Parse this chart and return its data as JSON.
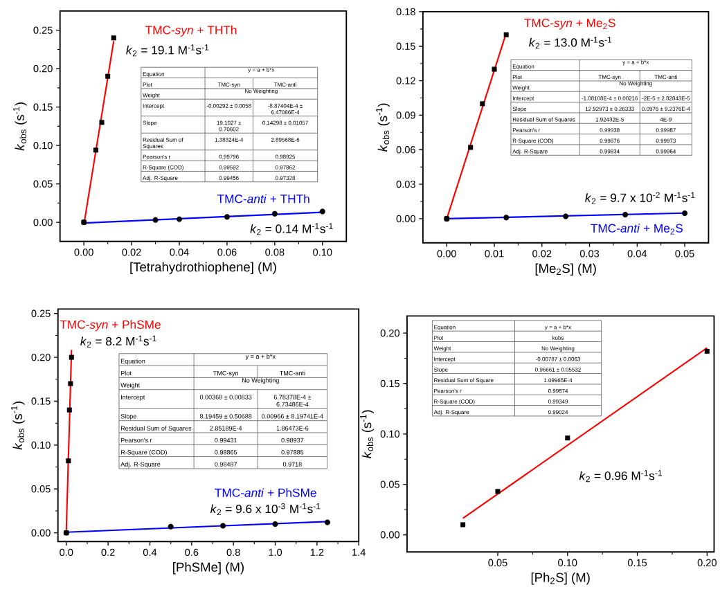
{
  "chart_data": [
    {
      "type": "scatter",
      "xlabel": "[Tetrahydrothiophene] (M)",
      "ylabel": "*k*$_{obs}$ (s$^{-1}$)",
      "xlim": [
        -0.01,
        0.11
      ],
      "xticks": [
        {
          "value": 0,
          "label": "0.00"
        },
        0.02,
        0.04,
        0.06,
        0.08,
        {
          "value": 0.1,
          "label": "0.10"
        }
      ],
      "ylim": [
        -0.025,
        0.275
      ],
      "yticks": [
        {
          "value": 0,
          "label": "0.00"
        },
        0.05,
        {
          "value": 0.1,
          "label": "0.10"
        },
        0.15,
        {
          "value": 0.2,
          "label": "0.20"
        },
        0.25
      ],
      "series": [
        {
          "color": "#000000",
          "marker": "square",
          "x": [
            0,
            0.005,
            0.0075,
            0.01,
            0.0125
          ],
          "values": [
            0,
            0.094,
            0.13,
            0.19,
            0.24
          ]
        },
        {
          "type": "line",
          "name": "TMC-*syn* + THTh",
          "color": "#ff0000",
          "x": [
            0,
            0.0125
          ],
          "values": [
            -0.003,
            0.236
          ]
        },
        {
          "color": "#000000",
          "marker": "circle",
          "x": [
            0,
            0.03,
            0.04,
            0.06,
            0.08,
            0.1
          ],
          "values": [
            0,
            0.003,
            0.004,
            0.007,
            0.011,
            0.014
          ]
        },
        {
          "type": "line",
          "name": "TMC-*anti* + THTh",
          "color": "#0000ff",
          "x": [
            0,
            0.1
          ],
          "values": [
            -0.001,
            0.013
          ]
        }
      ],
      "annotations": [
        "*k*$_{2}$ = 19.1 M$^{-1}$s$^{-1}$",
        "*k*$_{2}$ = 0.14 M$^{-1}$s$^{-1}$",
        "Equation",
        "y = a + b*x",
        "Plot",
        "TMC-syn",
        "TMC-anti",
        "Weight",
        "No Weighting",
        "Intercept",
        "-0.00292 ± 0.0058",
        "-8.87404E-4 ± 6.47086E-4",
        "Slope",
        "19.1027 ± 0.70602",
        "0.14298 ± 0.01057",
        "Residual Sum of Squares",
        "1.38324E-4",
        "2.89568E-6",
        "Pearson's r",
        "0.99796",
        "0.98925",
        "R-Square (COD)",
        "0.99592",
        "0.97862",
        "Adj. R-Square",
        "0.99456",
        "0.97328"
      ]
    },
    {
      "type": "scatter",
      "xlabel": "[Me$_{2}$S] (M)",
      "ylabel": "*k*$_{obs}$ (s$^{-1}$)",
      "xlim": [
        -0.005,
        0.055
      ],
      "xticks": [
        {
          "value": 0,
          "label": "0.00"
        },
        0.01,
        0.02,
        0.03,
        0.04,
        0.05
      ],
      "ylim": [
        -0.021,
        0.18
      ],
      "yticks": [
        {
          "value": 0,
          "label": "0.00"
        },
        0.03,
        0.06,
        0.09,
        0.12,
        0.15,
        0.18
      ],
      "series": [
        {
          "color": "#000000",
          "marker": "square",
          "x": [
            0,
            0.005,
            0.0075,
            0.01,
            0.0125
          ],
          "values": [
            0,
            0.062,
            0.1,
            0.13,
            0.16
          ]
        },
        {
          "type": "line",
          "name": "TMC-*syn* + Me$_{2}$S",
          "color": "#ff0000",
          "x": [
            0,
            0.0125
          ],
          "values": [
            -0.0001,
            0.1615
          ]
        },
        {
          "color": "#000000",
          "marker": "circle",
          "x": [
            0,
            0.0125,
            0.025,
            0.0375,
            0.05
          ],
          "values": [
            0,
            0.001,
            0.002,
            0.0035,
            0.0047
          ]
        },
        {
          "type": "line",
          "name": "TMC-*anti* + Me$_{2}$S",
          "color": "#0000ff",
          "x": [
            0,
            0.05
          ],
          "values": [
            0,
            0.0049
          ]
        }
      ],
      "annotations": [
        "*k*$_{2}$ = 13.0 M$^{-1}$s$^{-1}$",
        "*k*$_{2}$ = 9.7 x 10$^{-2}$ M$^{-1}$s$^{-1}$",
        "Equation",
        "y = a + b*x",
        "Plot",
        "TMC-syn",
        "TMC-anti",
        "Weight",
        "No Weighting",
        "Intercept",
        "-1.08108E-4 ± 0.00216",
        "-2E-5 ± 2.82843E-5",
        "Slope",
        "12.92973 ± 0.26333",
        "0.0976 ± 9.2376E-4",
        "Residual Sum of Squares",
        "1.92432E-5",
        "4E-9",
        "Pearson's r",
        "0.99938",
        "0.99987",
        "R-Square (COD)",
        "0.99876",
        "0.99973",
        "Adj. R-Square",
        "0.99834",
        "0.99964"
      ]
    },
    {
      "type": "scatter",
      "xlabel": "[PhSMe] (M)",
      "ylabel": "*k*$_{obs}$ (s$^{-1}$)",
      "xlim": [
        -0.04,
        1.4
      ],
      "xticks": [
        {
          "value": 0,
          "label": "0.0"
        },
        0.2,
        0.4,
        0.6,
        0.8,
        {
          "value": 1,
          "label": "1.0"
        },
        1.2,
        1.4
      ],
      "ylim": [
        -0.01,
        0.255
      ],
      "yticks": [
        {
          "value": 0,
          "label": "0.00"
        },
        0.05,
        {
          "value": 0.1,
          "label": "0.10"
        },
        0.15,
        {
          "value": 0.2,
          "label": "0.20"
        },
        0.25
      ],
      "series": [
        {
          "color": "#000000",
          "marker": "square",
          "x": [
            0,
            0.01,
            0.015,
            0.02,
            0.025
          ],
          "values": [
            0,
            0.082,
            0.14,
            0.17,
            0.2
          ]
        },
        {
          "type": "line",
          "name": "TMC-*syn* + PhSMe",
          "color": "#ff0000",
          "x": [
            0,
            0.025
          ],
          "values": [
            0.0037,
            0.2085
          ]
        },
        {
          "color": "#000000",
          "marker": "circle",
          "x": [
            0,
            0.5,
            0.75,
            1,
            1.25
          ],
          "values": [
            0,
            0.007,
            0.008,
            0.01,
            0.012
          ]
        },
        {
          "type": "line",
          "name": "TMC-*anti* + PhSMe",
          "color": "#0000ff",
          "x": [
            0,
            1.25
          ],
          "values": [
            0.0007,
            0.0128
          ]
        }
      ],
      "annotations": [
        "*k*$_{2}$ = 8.2 M$^{-1}$s$^{-1}$",
        "*k*$_{2}$ = 9.6 x 10$^{-3}$ M$^{-1}$s$^{-1}$",
        "Equation",
        "y = a + b*x",
        "Plot",
        "TMC-syn",
        "TMC-anti",
        "Weight",
        "No Weighting",
        "Intercept",
        "0.00368 ± 0.00833",
        "6.78378E-4 ± 6.73486E-4",
        "Slope",
        "8.19459 ± 0.50688",
        "0.00966 ± 8.19741E-4",
        "Residual Sum of Squares",
        "2.85189E-4",
        "1.86473E-6",
        "Pearson's r",
        "0.99431",
        "0.98937",
        "R-Square (COD)",
        "0.98865",
        "0.97885",
        "Adj. R-Square",
        "0.98487",
        "0.9718"
      ]
    },
    {
      "type": "scatter",
      "xlabel": "[Ph$_{2}$S] (M)",
      "ylabel": "*k*$_{obs}$ (s$^{-1}$)",
      "xlim": [
        -0.015,
        0.205
      ],
      "xticks": [
        0.05,
        {
          "value": 0.1,
          "label": "0.10"
        },
        0.15,
        {
          "value": 0.2,
          "label": "0.20"
        }
      ],
      "ylim": [
        -0.017,
        0.217
      ],
      "yticks": [
        {
          "value": 0,
          "label": "0.00"
        },
        0.05,
        {
          "value": 0.1,
          "label": "0.10"
        },
        0.15,
        {
          "value": 0.2,
          "label": "0.20"
        }
      ],
      "series": [
        {
          "color": "#000000",
          "marker": "square",
          "x": [
            0.025,
            0.05,
            0.1,
            0.2
          ],
          "values": [
            0.01,
            0.043,
            0.096,
            0.182
          ]
        },
        {
          "type": "line",
          "color": "#ff0000",
          "x": [
            0.025,
            0.2
          ],
          "values": [
            0.0163,
            0.1854
          ]
        }
      ],
      "annotations": [
        "*k*$_{2}$ = 0.96 M$^{-1}$s$^{-1}$",
        "Equation",
        "y = a + b*x",
        "Plot",
        "kobs",
        "Weight",
        "No Weighting",
        "Intercept",
        "-0.00787 ± 0.0063",
        "Slope",
        "0.96661 ± 0.05532",
        "Residual Sum of Square",
        "1.09965E-4",
        "Pearson's r",
        "0.99674",
        "R-Square (COD)",
        "0.99349",
        "Adj. R-Square",
        "0.99024"
      ]
    }
  ]
}
